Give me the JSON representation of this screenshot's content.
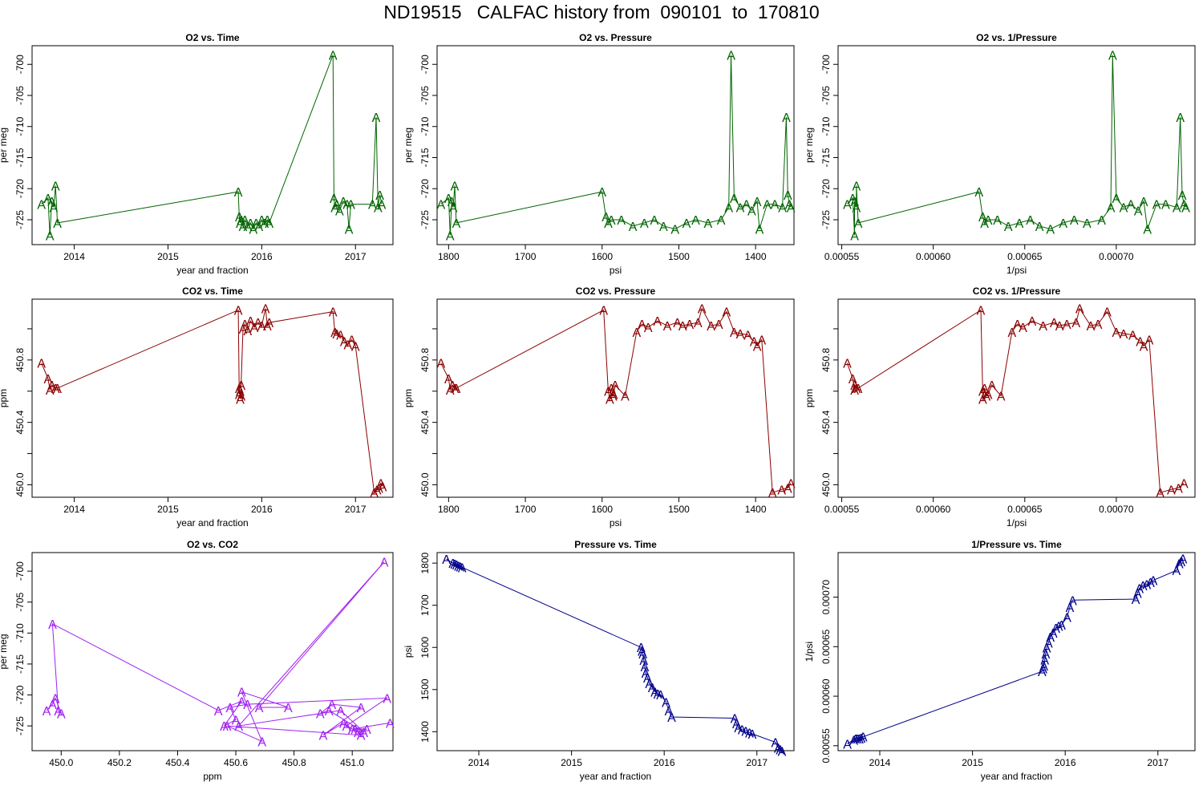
{
  "page_title": "ND19515   CALFAC history from  090101  to  170810",
  "chart_data": [
    {
      "type": "line",
      "title": "O2 vs. Time",
      "xlabel": "year and fraction",
      "ylabel": "per meg",
      "color": "#006400",
      "marker": "A",
      "xlim": [
        2013.55,
        2017.4
      ],
      "ylim": [
        -729.0,
        -697.0
      ],
      "xticks": [
        2014,
        2015,
        2016,
        2017
      ],
      "xtick_labels": [
        "2014",
        "2015",
        "2016",
        "2017"
      ],
      "yticks": [
        -725,
        -720,
        -715,
        -710,
        -705,
        -700
      ],
      "ytick_labels": [
        "-725",
        "-720",
        "-715",
        "-710",
        "-705",
        "-700"
      ],
      "x": [
        2013.65,
        2013.72,
        2013.74,
        2013.76,
        2013.78,
        2013.8,
        2013.82,
        2015.75,
        2015.76,
        2015.77,
        2015.78,
        2015.8,
        2015.82,
        2015.85,
        2015.88,
        2015.91,
        2015.94,
        2015.97,
        2016.0,
        2016.03,
        2016.06,
        2016.08,
        2016.76,
        2016.77,
        2016.78,
        2016.8,
        2016.83,
        2016.87,
        2016.91,
        2016.93,
        2016.95,
        2017.18,
        2017.22,
        2017.24,
        2017.26,
        2017.28
      ],
      "y": [
        -722.5,
        -721.5,
        -727.5,
        -722.0,
        -723.0,
        -719.5,
        -725.5,
        -720.5,
        -724.5,
        -725.5,
        -725.0,
        -726.0,
        -725.0,
        -726.0,
        -725.5,
        -726.5,
        -725.5,
        -726.0,
        -725.0,
        -725.5,
        -725.0,
        -725.5,
        -698.5,
        -721.5,
        -723.0,
        -722.5,
        -723.5,
        -722.0,
        -722.5,
        -726.5,
        -722.5,
        -722.5,
        -708.5,
        -723.0,
        -721.0,
        -722.5
      ]
    },
    {
      "type": "line",
      "title": "O2 vs. Pressure",
      "xlabel": "psi",
      "ylabel": "per meg",
      "color": "#006400",
      "marker": "A",
      "xlim": [
        1815,
        1350
      ],
      "ylim": [
        -729.0,
        -697.0
      ],
      "xticks": [
        1800,
        1700,
        1600,
        1500,
        1400
      ],
      "xtick_labels": [
        "1800",
        "1700",
        "1600",
        "1500",
        "1400"
      ],
      "yticks": [
        -725,
        -720,
        -715,
        -710,
        -705,
        -700
      ],
      "ytick_labels": [
        "-725",
        "-720",
        "-715",
        "-710",
        "-705",
        "-700"
      ],
      "x": [
        1810,
        1800,
        1798,
        1796,
        1794,
        1792,
        1790,
        1600,
        1595,
        1592,
        1588,
        1575,
        1560,
        1545,
        1532,
        1520,
        1505,
        1490,
        1478,
        1462,
        1445,
        1435,
        1432,
        1428,
        1420,
        1412,
        1405,
        1398,
        1395,
        1385,
        1375,
        1365,
        1360,
        1358,
        1356,
        1354
      ],
      "y": [
        -722.5,
        -721.5,
        -727.5,
        -722.0,
        -723.0,
        -719.5,
        -725.5,
        -720.5,
        -724.5,
        -725.5,
        -725.0,
        -725.0,
        -726.0,
        -725.5,
        -725.0,
        -726.0,
        -726.5,
        -725.5,
        -725.0,
        -725.5,
        -725.0,
        -723.0,
        -698.5,
        -721.5,
        -723.0,
        -722.5,
        -723.5,
        -722.0,
        -726.5,
        -722.5,
        -722.5,
        -723.0,
        -708.5,
        -721.0,
        -722.5,
        -723.0
      ]
    },
    {
      "type": "line",
      "title": "O2 vs. 1/Pressure",
      "xlabel": "1/psi",
      "ylabel": "per meg",
      "color": "#006400",
      "marker": "A",
      "xlim": [
        0.000548,
        0.000743
      ],
      "ylim": [
        -729.0,
        -697.0
      ],
      "xticks": [
        0.00055,
        0.0006,
        0.00065,
        0.0007
      ],
      "xtick_labels": [
        "0.00055",
        "0.00060",
        "0.00065",
        "0.00070"
      ],
      "yticks": [
        -725,
        -720,
        -715,
        -710,
        -705,
        -700
      ],
      "ytick_labels": [
        "-725",
        "-720",
        "-715",
        "-710",
        "-705",
        "-700"
      ],
      "x": [
        0.000553,
        0.000556,
        0.000557,
        0.000557,
        0.000558,
        0.000558,
        0.000559,
        0.000625,
        0.000627,
        0.000628,
        0.00063,
        0.000635,
        0.000641,
        0.000647,
        0.000653,
        0.000658,
        0.000664,
        0.000671,
        0.000677,
        0.000684,
        0.000692,
        0.000697,
        0.000698,
        0.0007,
        0.000704,
        0.000708,
        0.000712,
        0.000715,
        0.000717,
        0.000722,
        0.000727,
        0.000733,
        0.000735,
        0.000736,
        0.000737,
        0.000738
      ],
      "y": [
        -722.5,
        -721.5,
        -727.5,
        -722.0,
        -723.0,
        -719.5,
        -725.5,
        -720.5,
        -724.5,
        -725.5,
        -725.0,
        -725.0,
        -726.0,
        -725.5,
        -725.0,
        -726.0,
        -726.5,
        -725.5,
        -725.0,
        -725.5,
        -725.0,
        -723.0,
        -698.5,
        -721.5,
        -723.0,
        -722.5,
        -723.5,
        -722.0,
        -726.5,
        -722.5,
        -722.5,
        -723.0,
        -708.5,
        -721.0,
        -722.5,
        -723.0
      ]
    },
    {
      "type": "line",
      "title": "CO2 vs. Time",
      "xlabel": "year and fraction",
      "ylabel": "ppm",
      "color": "#8b0000",
      "marker": "A",
      "xlim": [
        2013.55,
        2017.4
      ],
      "ylim": [
        449.92,
        451.19
      ],
      "xticks": [
        2014,
        2015,
        2016,
        2017
      ],
      "xtick_labels": [
        "2014",
        "2015",
        "2016",
        "2017"
      ],
      "yticks": [
        450.0,
        450.2,
        450.4,
        450.6,
        450.8,
        451.0
      ],
      "ytick_labels": [
        "450.0",
        "",
        "450.4",
        "",
        "450.8",
        ""
      ],
      "x": [
        2013.65,
        2013.72,
        2013.74,
        2013.76,
        2013.8,
        2013.82,
        2015.75,
        2015.76,
        2015.76,
        2015.77,
        2015.77,
        2015.78,
        2015.78,
        2015.8,
        2015.82,
        2015.85,
        2015.88,
        2015.92,
        2015.96,
        2016.0,
        2016.04,
        2016.06,
        2016.08,
        2016.76,
        2016.78,
        2016.8,
        2016.84,
        2016.88,
        2016.92,
        2016.96,
        2017.0,
        2017.2,
        2017.23,
        2017.25,
        2017.27,
        2017.29
      ],
      "y": [
        450.78,
        450.68,
        450.61,
        450.64,
        450.62,
        450.62,
        451.12,
        450.58,
        450.62,
        450.55,
        450.6,
        450.57,
        450.64,
        451.0,
        451.03,
        450.99,
        451.05,
        451.01,
        451.04,
        451.02,
        451.13,
        451.02,
        451.04,
        451.11,
        450.98,
        450.97,
        450.96,
        450.92,
        450.9,
        450.93,
        450.89,
        449.95,
        449.97,
        449.98,
        450.01,
        449.99
      ]
    },
    {
      "type": "line",
      "title": "CO2 vs. Pressure",
      "xlabel": "psi",
      "ylabel": "ppm",
      "color": "#8b0000",
      "marker": "A",
      "xlim": [
        1815,
        1350
      ],
      "ylim": [
        449.92,
        451.19
      ],
      "xticks": [
        1800,
        1700,
        1600,
        1500,
        1400
      ],
      "xtick_labels": [
        "1800",
        "1700",
        "1600",
        "1500",
        "1400"
      ],
      "yticks": [
        450.0,
        450.2,
        450.4,
        450.6,
        450.8,
        451.0
      ],
      "ytick_labels": [
        "450.0",
        "",
        "450.4",
        "",
        "450.8",
        ""
      ],
      "x": [
        1810,
        1800,
        1798,
        1795,
        1792,
        1790,
        1598,
        1592,
        1590,
        1588,
        1586,
        1585,
        1583,
        1570,
        1555,
        1548,
        1540,
        1528,
        1515,
        1502,
        1495,
        1486,
        1475,
        1470,
        1458,
        1448,
        1438,
        1428,
        1420,
        1410,
        1402,
        1398,
        1392,
        1378,
        1366,
        1358,
        1354
      ],
      "y": [
        450.78,
        450.68,
        450.61,
        450.64,
        450.62,
        450.62,
        451.12,
        450.6,
        450.55,
        450.62,
        450.57,
        450.58,
        450.64,
        450.57,
        450.98,
        451.03,
        451.01,
        451.05,
        451.02,
        451.04,
        451.02,
        451.03,
        451.04,
        451.13,
        451.02,
        451.03,
        451.11,
        450.98,
        450.97,
        450.96,
        450.92,
        450.89,
        450.93,
        449.95,
        449.97,
        449.98,
        450.01
      ]
    },
    {
      "type": "line",
      "title": "CO2 vs. 1/Pressure",
      "xlabel": "1/psi",
      "ylabel": "ppm",
      "color": "#8b0000",
      "marker": "A",
      "xlim": [
        0.000548,
        0.000743
      ],
      "ylim": [
        449.92,
        451.19
      ],
      "xticks": [
        0.00055,
        0.0006,
        0.00065,
        0.0007
      ],
      "xtick_labels": [
        "0.00055",
        "0.00060",
        "0.00065",
        "0.00070"
      ],
      "yticks": [
        450.0,
        450.2,
        450.4,
        450.6,
        450.8,
        451.0
      ],
      "ytick_labels": [
        "450.0",
        "",
        "450.4",
        "",
        "450.8",
        ""
      ],
      "x": [
        0.000553,
        0.000556,
        0.000557,
        0.000557,
        0.000558,
        0.000559,
        0.000626,
        0.000627,
        0.000627,
        0.000628,
        0.000629,
        0.00063,
        0.000632,
        0.000637,
        0.000643,
        0.000646,
        0.000649,
        0.000654,
        0.00066,
        0.000666,
        0.000669,
        0.000673,
        0.000678,
        0.00068,
        0.000686,
        0.00069,
        0.000695,
        0.0007,
        0.000704,
        0.000709,
        0.000713,
        0.000715,
        0.000718,
        0.000724,
        0.00073,
        0.000734,
        0.000737
      ],
      "y": [
        450.78,
        450.68,
        450.61,
        450.64,
        450.62,
        450.62,
        451.12,
        450.6,
        450.55,
        450.62,
        450.57,
        450.58,
        450.64,
        450.57,
        450.98,
        451.03,
        451.01,
        451.05,
        451.02,
        451.04,
        451.02,
        451.03,
        451.04,
        451.13,
        451.02,
        451.03,
        451.11,
        450.98,
        450.97,
        450.96,
        450.92,
        450.89,
        450.93,
        449.95,
        449.97,
        449.98,
        450.01
      ]
    },
    {
      "type": "line",
      "title": "O2 vs. CO2",
      "xlabel": "ppm",
      "ylabel": "per meg",
      "color": "#a020f0",
      "marker": "A",
      "xlim": [
        449.9,
        451.14
      ],
      "ylim": [
        -729.0,
        -697.0
      ],
      "xticks": [
        450.0,
        450.2,
        450.4,
        450.6,
        450.8,
        451.0
      ],
      "xtick_labels": [
        "450.0",
        "450.2",
        "450.4",
        "450.6",
        "450.8",
        "451.0"
      ],
      "yticks": [
        -725,
        -720,
        -715,
        -710,
        -705,
        -700
      ],
      "ytick_labels": [
        "-725",
        "-720",
        "-715",
        "-710",
        "-705",
        "-700"
      ],
      "x": [
        449.95,
        449.97,
        449.98,
        450.0,
        449.99,
        449.97,
        450.54,
        450.62,
        450.56,
        450.6,
        450.58,
        450.64,
        451.12,
        450.98,
        451.02,
        451.05,
        451.01,
        451.03,
        450.57,
        450.69,
        450.62,
        450.78,
        450.68,
        451.11,
        450.61,
        450.96,
        451.04,
        450.92,
        450.89,
        450.93,
        451.03,
        450.9,
        450.97,
        451.0,
        451.13
      ],
      "y": [
        -722.5,
        -721.5,
        -720.5,
        -723.0,
        -722.5,
        -708.5,
        -722.5,
        -721.0,
        -725.0,
        -724.0,
        -722.0,
        -721.5,
        -720.5,
        -725.0,
        -726.0,
        -725.5,
        -725.5,
        -726.5,
        -725.0,
        -727.5,
        -719.5,
        -722.0,
        -722.0,
        -698.5,
        -725.0,
        -722.5,
        -726.0,
        -722.5,
        -723.0,
        -721.5,
        -722.0,
        -726.5,
        -724.5,
        -725.5,
        -724.5
      ]
    },
    {
      "type": "line",
      "title": "Pressure vs. Time",
      "xlabel": "year and fraction",
      "ylabel": "psi",
      "color": "#00008b",
      "marker": "A",
      "xlim": [
        2013.55,
        2017.4
      ],
      "ylim": [
        1355,
        1825
      ],
      "xticks": [
        2014,
        2015,
        2016,
        2017
      ],
      "xtick_labels": [
        "2014",
        "2015",
        "2016",
        "2017"
      ],
      "yticks": [
        1400,
        1500,
        1600,
        1700,
        1800
      ],
      "ytick_labels": [
        "1400",
        "1500",
        "1600",
        "1700",
        "1800"
      ],
      "x": [
        2013.65,
        2013.72,
        2013.74,
        2013.76,
        2013.78,
        2013.8,
        2013.82,
        2015.75,
        2015.76,
        2015.77,
        2015.78,
        2015.79,
        2015.8,
        2015.82,
        2015.84,
        2015.87,
        2015.9,
        2015.93,
        2015.96,
        2016.02,
        2016.05,
        2016.08,
        2016.76,
        2016.78,
        2016.8,
        2016.84,
        2016.88,
        2016.92,
        2016.95,
        2017.2,
        2017.23,
        2017.25,
        2017.27
      ],
      "y": [
        1810,
        1800,
        1798,
        1796,
        1794,
        1792,
        1790,
        1600,
        1592,
        1585,
        1570,
        1555,
        1540,
        1528,
        1515,
        1505,
        1495,
        1490,
        1488,
        1470,
        1450,
        1435,
        1432,
        1420,
        1410,
        1405,
        1402,
        1398,
        1395,
        1375,
        1362,
        1358,
        1354
      ]
    },
    {
      "type": "line",
      "title": "1/Pressure vs. Time",
      "xlabel": "year and fraction",
      "ylabel": "1/psi",
      "color": "#00008b",
      "marker": "A",
      "xlim": [
        2013.55,
        2017.4
      ],
      "ylim": [
        0.000545,
        0.000745
      ],
      "xticks": [
        2014,
        2015,
        2016,
        2017
      ],
      "xtick_labels": [
        "2014",
        "2015",
        "2016",
        "2017"
      ],
      "yticks": [
        0.00055,
        0.0006,
        0.00065,
        0.0007
      ],
      "ytick_labels": [
        "0.00055",
        "0.00060",
        "0.00065",
        "0.00070"
      ],
      "x": [
        2013.65,
        2013.72,
        2013.74,
        2013.76,
        2013.78,
        2013.8,
        2013.82,
        2015.75,
        2015.76,
        2015.77,
        2015.78,
        2015.79,
        2015.8,
        2015.82,
        2015.84,
        2015.87,
        2015.9,
        2015.93,
        2015.96,
        2016.02,
        2016.05,
        2016.08,
        2016.76,
        2016.78,
        2016.8,
        2016.84,
        2016.88,
        2016.92,
        2016.95,
        2017.2,
        2017.23,
        2017.25,
        2017.27
      ],
      "y": [
        0.000552,
        0.000556,
        0.000557,
        0.000557,
        0.000557,
        0.000558,
        0.000559,
        0.000625,
        0.000628,
        0.000631,
        0.000637,
        0.000643,
        0.000649,
        0.000654,
        0.00066,
        0.000664,
        0.000669,
        0.000671,
        0.000672,
        0.00068,
        0.00069,
        0.000697,
        0.000698,
        0.000704,
        0.000709,
        0.000712,
        0.000713,
        0.000715,
        0.000717,
        0.000727,
        0.000734,
        0.000736,
        0.000739
      ]
    }
  ]
}
